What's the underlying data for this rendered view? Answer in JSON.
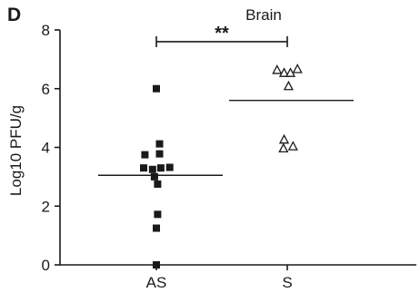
{
  "chart_data": {
    "type": "scatter",
    "panel_label": "D",
    "title": "Brain",
    "xlabel": "",
    "ylabel": "Log10 PFU/g",
    "ylim": [
      0,
      8
    ],
    "yticks": [
      "0",
      "2",
      "4",
      "6",
      "8"
    ],
    "categories": [
      "AS",
      "S"
    ],
    "series": [
      {
        "category": "AS",
        "marker": "filled-square",
        "color": "#1a1a1a",
        "mean": 3.05,
        "points": [
          {
            "x": 0,
            "y": 6.0
          },
          {
            "x": -0.18,
            "y": 3.75
          },
          {
            "x": 0.05,
            "y": 3.78
          },
          {
            "x": 0.05,
            "y": 4.12
          },
          {
            "x": -0.2,
            "y": 3.3
          },
          {
            "x": -0.06,
            "y": 3.25
          },
          {
            "x": 0.07,
            "y": 3.3
          },
          {
            "x": 0.21,
            "y": 3.32
          },
          {
            "x": -0.03,
            "y": 3.0
          },
          {
            "x": 0.02,
            "y": 2.75
          },
          {
            "x": 0.02,
            "y": 1.72
          },
          {
            "x": 0,
            "y": 1.25
          },
          {
            "x": 0,
            "y": 0.0
          }
        ]
      },
      {
        "category": "S",
        "marker": "open-triangle",
        "color": "#1a1a1a",
        "mean": 5.6,
        "points": [
          {
            "x": -0.16,
            "y": 6.65
          },
          {
            "x": -0.05,
            "y": 6.55
          },
          {
            "x": 0.05,
            "y": 6.55
          },
          {
            "x": 0.16,
            "y": 6.68
          },
          {
            "x": 0.02,
            "y": 6.1
          },
          {
            "x": -0.05,
            "y": 4.28
          },
          {
            "x": -0.06,
            "y": 3.98
          },
          {
            "x": 0.09,
            "y": 4.05
          }
        ]
      }
    ],
    "significance": {
      "label": "**",
      "from": "AS",
      "to": "S",
      "y": 7.6
    }
  }
}
